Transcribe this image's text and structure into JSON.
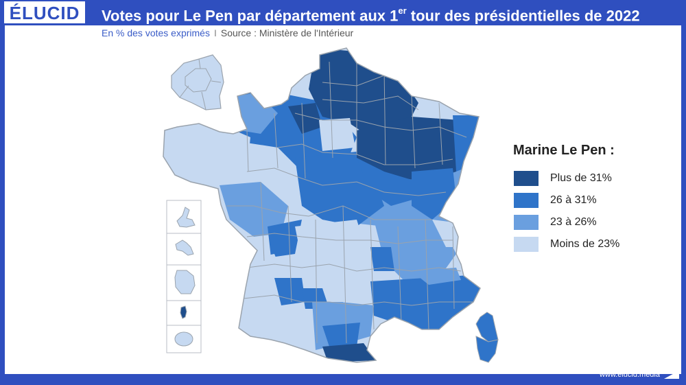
{
  "header": {
    "logo": "ÉLUCID",
    "title_main": "Votes pour Le Pen par département aux 1",
    "title_sup": "er",
    "title_end": " tour des présidentielles de 2022"
  },
  "subtitle": {
    "unit": "En % des votes exprimés",
    "separator": "I",
    "source": "Source : Ministère de l'Intérieur"
  },
  "legend": {
    "title": "Marine Le Pen :",
    "items": [
      {
        "label": "Plus de 31%",
        "color": "#1f4e8c"
      },
      {
        "label": "26 à 31%",
        "color": "#2f74c9"
      },
      {
        "label": "23 à 26%",
        "color": "#6a9fdf"
      },
      {
        "label": "Moins de 23%",
        "color": "#c6d9f1"
      }
    ]
  },
  "footer": {
    "url": "www.elucid.media"
  },
  "colors": {
    "brand": "#2f4fbf",
    "border": "#9aa3ad"
  }
}
